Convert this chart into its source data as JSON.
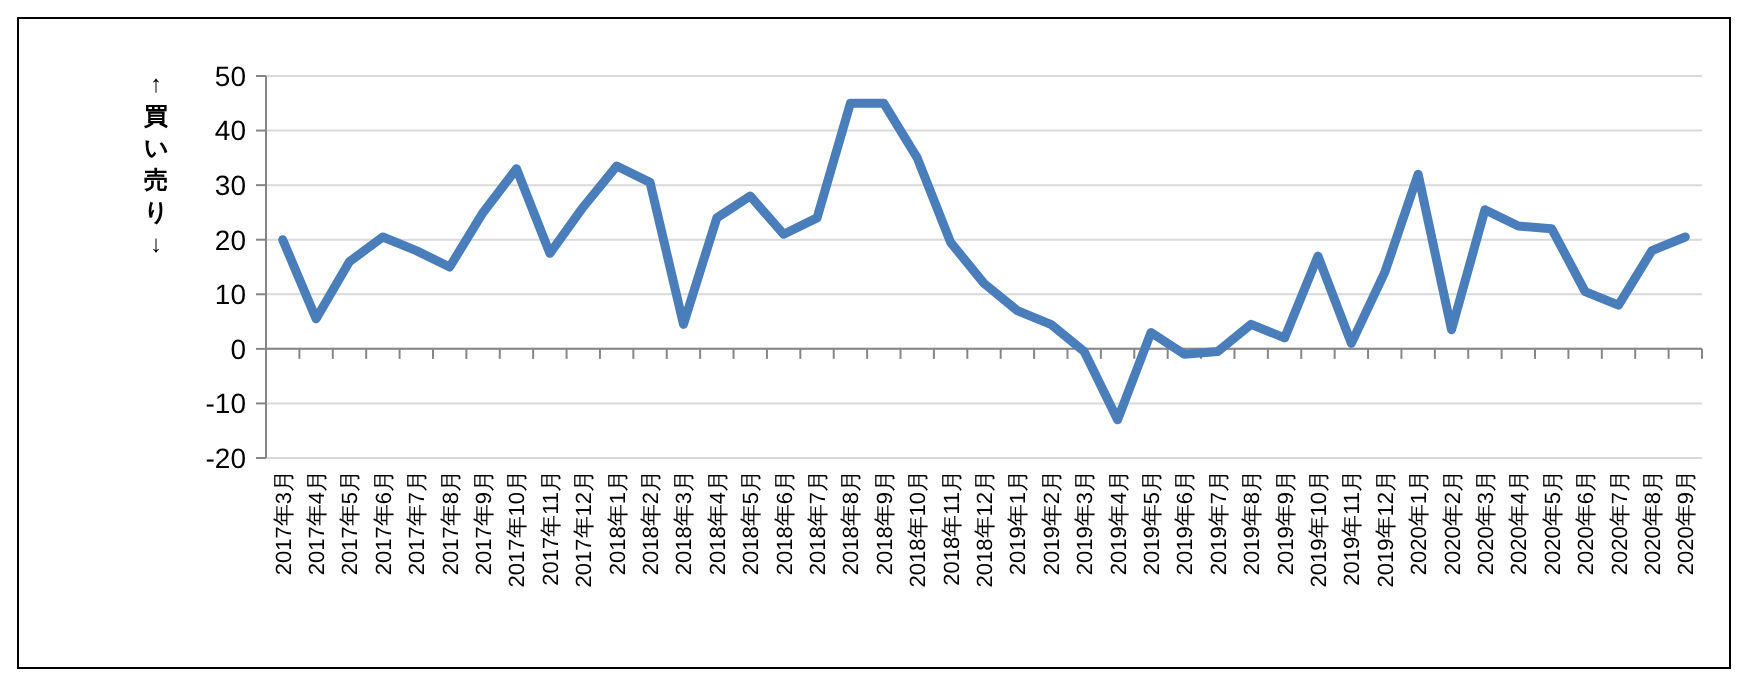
{
  "chart_data": {
    "type": "line",
    "ylabel": "↑買い売り↓",
    "categories": [
      "2017年3月",
      "2017年4月",
      "2017年5月",
      "2017年6月",
      "2017年7月",
      "2017年8月",
      "2017年9月",
      "2017年10月",
      "2017年11月",
      "2017年12月",
      "2018年1月",
      "2018年2月",
      "2018年3月",
      "2018年4月",
      "2018年5月",
      "2018年6月",
      "2018年7月",
      "2018年8月",
      "2018年9月",
      "2018年10月",
      "2018年11月",
      "2018年12月",
      "2019年1月",
      "2019年2月",
      "2019年3月",
      "2019年4月",
      "2019年5月",
      "2019年6月",
      "2019年7月",
      "2019年8月",
      "2019年9月",
      "2019年10月",
      "2019年11月",
      "2019年12月",
      "2020年1月",
      "2020年2月",
      "2020年3月",
      "2020年4月",
      "2020年5月",
      "2020年6月",
      "2020年7月",
      "2020年8月",
      "2020年9月"
    ],
    "series": [
      {
        "color": "#4a7ebb",
        "values": [
          20,
          5.5,
          16,
          20.5,
          18,
          15,
          25,
          33,
          17.5,
          26,
          33.5,
          30.5,
          4.5,
          24,
          28,
          21,
          24,
          45,
          45,
          35,
          19.5,
          12,
          7,
          4.5,
          -0.5,
          -13,
          3,
          -1,
          -0.5,
          4.5,
          2,
          17,
          1,
          14,
          32,
          3.5,
          25.5,
          22.5,
          22,
          10.5,
          8,
          18,
          20.5
        ]
      }
    ],
    "ylim": [
      -20,
      50
    ],
    "yticks": [
      -20,
      -10,
      0,
      10,
      20,
      30,
      40,
      50
    ],
    "grid": "y",
    "marker": "none",
    "line_style": "solid"
  }
}
